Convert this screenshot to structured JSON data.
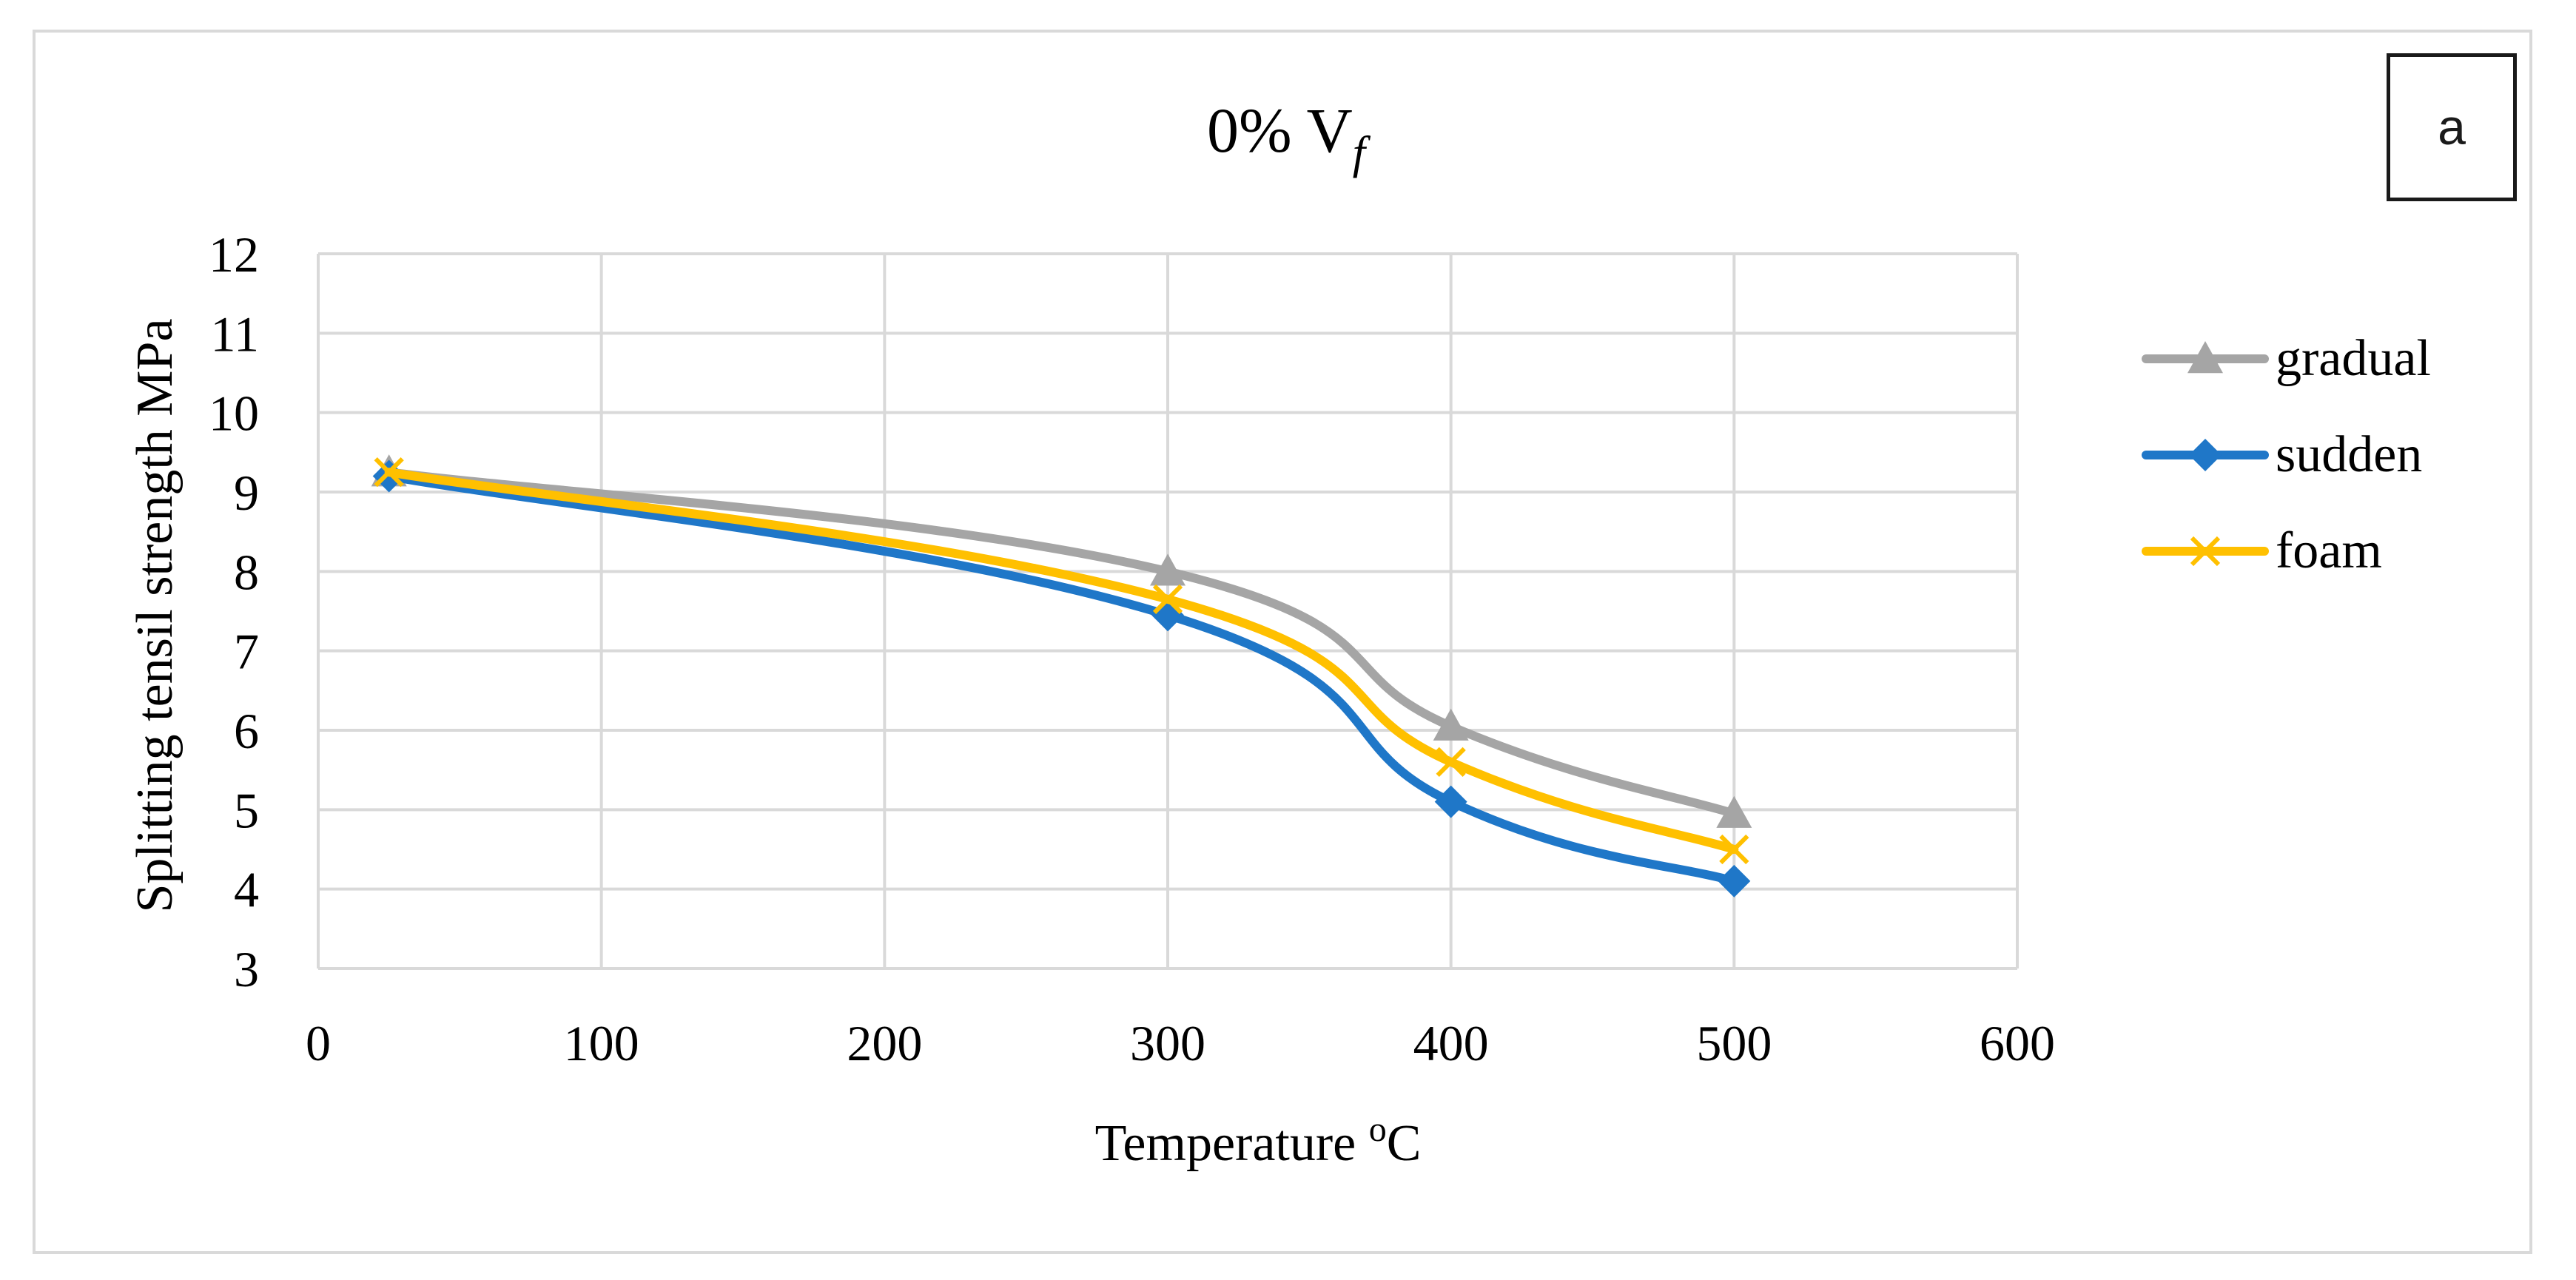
{
  "chart_data": {
    "type": "line",
    "title": "0% V",
    "title_subscript": "f",
    "panel_label": "a",
    "xlabel": "Temperature",
    "xlabel_superscript": "o",
    "xlabel_unit": "C",
    "ylabel": "Splitting tensil strength MPa",
    "xlim": [
      0,
      600
    ],
    "ylim": [
      3,
      12
    ],
    "xticks": [
      "0",
      "100",
      "200",
      "300",
      "400",
      "500",
      "600"
    ],
    "yticks": [
      "3",
      "4",
      "5",
      "6",
      "7",
      "8",
      "9",
      "10",
      "11",
      "12"
    ],
    "grid": true,
    "legend_position": "right",
    "x": [
      25,
      300,
      400,
      500
    ],
    "series": [
      {
        "name": "gradual",
        "marker": "triangle",
        "color": "#a5a5a5",
        "values": [
          9.25,
          8.0,
          6.05,
          4.95
        ]
      },
      {
        "name": "sudden",
        "marker": "diamond",
        "color": "#1f77c8",
        "values": [
          9.2,
          7.45,
          5.1,
          4.1
        ]
      },
      {
        "name": "foam",
        "marker": "x",
        "color": "#ffc000",
        "values": [
          9.25,
          7.65,
          5.6,
          4.5
        ]
      }
    ]
  }
}
